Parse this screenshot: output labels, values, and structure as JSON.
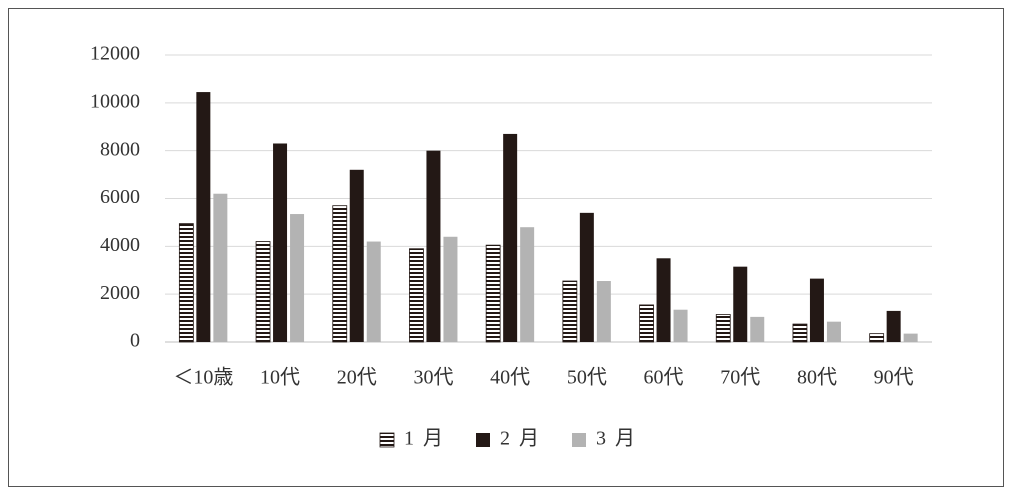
{
  "chart_data": {
    "type": "bar",
    "categories": [
      "＜10歳",
      "10代",
      "20代",
      "30代",
      "40代",
      "50代",
      "60代",
      "70代",
      "80代",
      "90代"
    ],
    "series": [
      {
        "name": "1 月",
        "color": "#231815",
        "pattern": "horizontal-stripes",
        "values": [
          4950,
          4200,
          5700,
          3900,
          4050,
          2550,
          1550,
          1150,
          750,
          350
        ]
      },
      {
        "name": "2 月",
        "color": "#231815",
        "values": [
          10450,
          8300,
          7200,
          8000,
          8700,
          5400,
          3500,
          3150,
          2650,
          1300
        ]
      },
      {
        "name": "3 月",
        "color": "#b3b3b3",
        "values": [
          6200,
          5350,
          4200,
          4400,
          4800,
          2550,
          1350,
          1050,
          850,
          350
        ]
      }
    ],
    "ylim": [
      0,
      12000
    ],
    "yticks": [
      0,
      2000,
      4000,
      6000,
      8000,
      10000,
      12000
    ],
    "grid": true,
    "legend": "bottom"
  }
}
